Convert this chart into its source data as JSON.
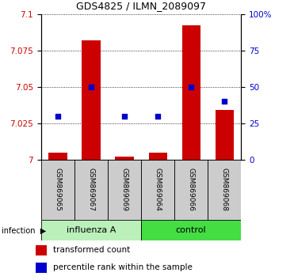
{
  "title": "GDS4825 / ILMN_2089097",
  "samples": [
    "GSM869065",
    "GSM869067",
    "GSM869069",
    "GSM869064",
    "GSM869066",
    "GSM869068"
  ],
  "red_values": [
    7.005,
    7.082,
    7.002,
    7.005,
    7.092,
    7.034
  ],
  "blue_values": [
    30,
    50,
    30,
    30,
    50,
    40
  ],
  "ylim_left": [
    7.0,
    7.1
  ],
  "ylim_right": [
    0,
    100
  ],
  "yticks_left": [
    7.0,
    7.025,
    7.05,
    7.075,
    7.1
  ],
  "yticks_right": [
    0,
    25,
    50,
    75,
    100
  ],
  "ytick_labels_left": [
    "7",
    "7.025",
    "7.05",
    "7.075",
    "7.1"
  ],
  "ytick_labels_right": [
    "0",
    "25",
    "50",
    "75",
    "100%"
  ],
  "groups": [
    {
      "label": "influenza A",
      "indices": [
        0,
        1,
        2
      ],
      "light_color": "#c8f5c8",
      "dark_color": "#55dd55"
    },
    {
      "label": "control",
      "indices": [
        3,
        4,
        5
      ],
      "light_color": "#55ee55",
      "dark_color": "#22cc22"
    }
  ],
  "group_label": "infection",
  "bar_color": "#cc0000",
  "scatter_color": "#0000cc",
  "bar_width": 0.55,
  "background_color": "#ffffff",
  "legend_labels": [
    "transformed count",
    "percentile rank within the sample"
  ],
  "legend_colors": [
    "#cc0000",
    "#0000cc"
  ],
  "tick_label_color_left": "#cc0000",
  "tick_label_color_right": "#0000cc",
  "sample_box_color": "#cccccc",
  "influenza_color": "#bbf0bb",
  "control_color": "#44dd44"
}
